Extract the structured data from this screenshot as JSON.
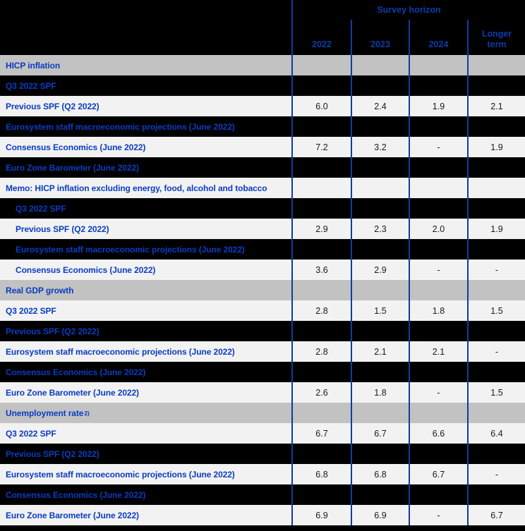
{
  "colors": {
    "label_blue": "#0a3cc2",
    "header_blue": "#0c3ba8",
    "grid_line_blue": "#0e3d9e",
    "section_row_bg": "#c2c2c2",
    "data_row_bg": "#f2f2f2",
    "band_bg": "#000000",
    "value_text": "#1a1a1a"
  },
  "header": {
    "survey_horizon_label": "Survey horizon",
    "columns": [
      "2022",
      "2023",
      "2024",
      "Longer term"
    ]
  },
  "rows": [
    {
      "type": "section",
      "label": "HICP inflation",
      "values": [
        "",
        "",
        "",
        ""
      ]
    },
    {
      "type": "black",
      "label": "Q3 2022 SPF",
      "values": [
        "",
        "",
        "",
        ""
      ]
    },
    {
      "type": "light",
      "label": "Previous SPF (Q2 2022)",
      "values": [
        "6.0",
        "2.4",
        "1.9",
        "2.1"
      ]
    },
    {
      "type": "black",
      "label": "Eurosystem staff macroeconomic projections (June 2022)",
      "values": [
        "",
        "",
        "",
        ""
      ]
    },
    {
      "type": "light",
      "label": "Consensus Economics (June 2022)",
      "values": [
        "7.2",
        "3.2",
        "-",
        "1.9"
      ]
    },
    {
      "type": "black",
      "label": "Euro Zone Barometer (June 2022)",
      "values": [
        "",
        "",
        "",
        ""
      ]
    },
    {
      "type": "light",
      "label": "Memo: HICP inflation excluding energy, food, alcohol and tobacco",
      "values": [
        "",
        "",
        "",
        ""
      ]
    },
    {
      "type": "black",
      "indent": true,
      "label": "Q3 2022 SPF",
      "values": [
        "",
        "",
        "",
        ""
      ]
    },
    {
      "type": "light",
      "indent": true,
      "label": "Previous SPF (Q2 2022)",
      "values": [
        "2.9",
        "2.3",
        "2.0",
        "1.9"
      ]
    },
    {
      "type": "black",
      "indent": true,
      "label": "Eurosystem staff macroeconomic projections (June 2022)",
      "values": [
        "",
        "",
        "",
        ""
      ]
    },
    {
      "type": "light",
      "indent": true,
      "label": "Consensus Economics (June 2022)",
      "values": [
        "3.6",
        "2.9",
        "-",
        "-"
      ]
    },
    {
      "type": "section",
      "label": "Real GDP growth",
      "values": [
        "",
        "",
        "",
        ""
      ]
    },
    {
      "type": "light",
      "label": "Q3 2022 SPF",
      "values": [
        "2.8",
        "1.5",
        "1.8",
        "1.5"
      ]
    },
    {
      "type": "black",
      "label": "Previous SPF (Q2 2022)",
      "values": [
        "",
        "",
        "",
        ""
      ]
    },
    {
      "type": "light",
      "label": "Eurosystem staff macroeconomic projections (June 2022)",
      "values": [
        "2.8",
        "2.1",
        "2.1",
        "-"
      ]
    },
    {
      "type": "black",
      "label": "Consensus Economics (June 2022)",
      "values": [
        "",
        "",
        "",
        ""
      ]
    },
    {
      "type": "light",
      "label": "Euro Zone Barometer (June 2022)",
      "values": [
        "2.6",
        "1.8",
        "-",
        "1.5"
      ]
    },
    {
      "type": "section",
      "label": "Unemployment rate",
      "label_superscript": "2)",
      "values": [
        "",
        "",
        "",
        ""
      ]
    },
    {
      "type": "light",
      "label": "Q3 2022 SPF",
      "values": [
        "6.7",
        "6.7",
        "6.6",
        "6.4"
      ]
    },
    {
      "type": "black",
      "label": "Previous SPF (Q2 2022)",
      "values": [
        "",
        "",
        "",
        ""
      ]
    },
    {
      "type": "light",
      "label": "Eurosystem staff macroeconomic projections (June 2022)",
      "values": [
        "6.8",
        "6.8",
        "6.7",
        "-"
      ]
    },
    {
      "type": "black",
      "label": "Consensus Economics (June 2022)",
      "values": [
        "",
        "",
        "",
        ""
      ]
    },
    {
      "type": "light",
      "label": "Euro Zone Barometer (June 2022)",
      "values": [
        "6.9",
        "6.9",
        "-",
        "6.7"
      ]
    }
  ],
  "chart_data": {
    "type": "table",
    "title": "Survey horizon",
    "columns": [
      "2022",
      "2023",
      "2024",
      "Longer term"
    ],
    "sections": [
      {
        "name": "HICP inflation",
        "rows": [
          {
            "source": "Previous SPF (Q2 2022)",
            "values": [
              6.0,
              2.4,
              1.9,
              2.1
            ]
          },
          {
            "source": "Consensus Economics (June 2022)",
            "values": [
              7.2,
              3.2,
              null,
              1.9
            ]
          }
        ]
      },
      {
        "name": "Memo: HICP inflation excluding energy, food, alcohol and tobacco",
        "rows": [
          {
            "source": "Previous SPF (Q2 2022)",
            "values": [
              2.9,
              2.3,
              2.0,
              1.9
            ]
          },
          {
            "source": "Consensus Economics (June 2022)",
            "values": [
              3.6,
              2.9,
              null,
              null
            ]
          }
        ]
      },
      {
        "name": "Real GDP growth",
        "rows": [
          {
            "source": "Q3 2022 SPF",
            "values": [
              2.8,
              1.5,
              1.8,
              1.5
            ]
          },
          {
            "source": "Eurosystem staff macroeconomic projections (June 2022)",
            "values": [
              2.8,
              2.1,
              2.1,
              null
            ]
          },
          {
            "source": "Euro Zone Barometer (June 2022)",
            "values": [
              2.6,
              1.8,
              null,
              1.5
            ]
          }
        ]
      },
      {
        "name": "Unemployment rate 2)",
        "rows": [
          {
            "source": "Q3 2022 SPF",
            "values": [
              6.7,
              6.7,
              6.6,
              6.4
            ]
          },
          {
            "source": "Eurosystem staff macroeconomic projections (June 2022)",
            "values": [
              6.8,
              6.8,
              6.7,
              null
            ]
          },
          {
            "source": "Euro Zone Barometer (June 2022)",
            "values": [
              6.9,
              6.9,
              null,
              6.7
            ]
          }
        ]
      }
    ]
  }
}
